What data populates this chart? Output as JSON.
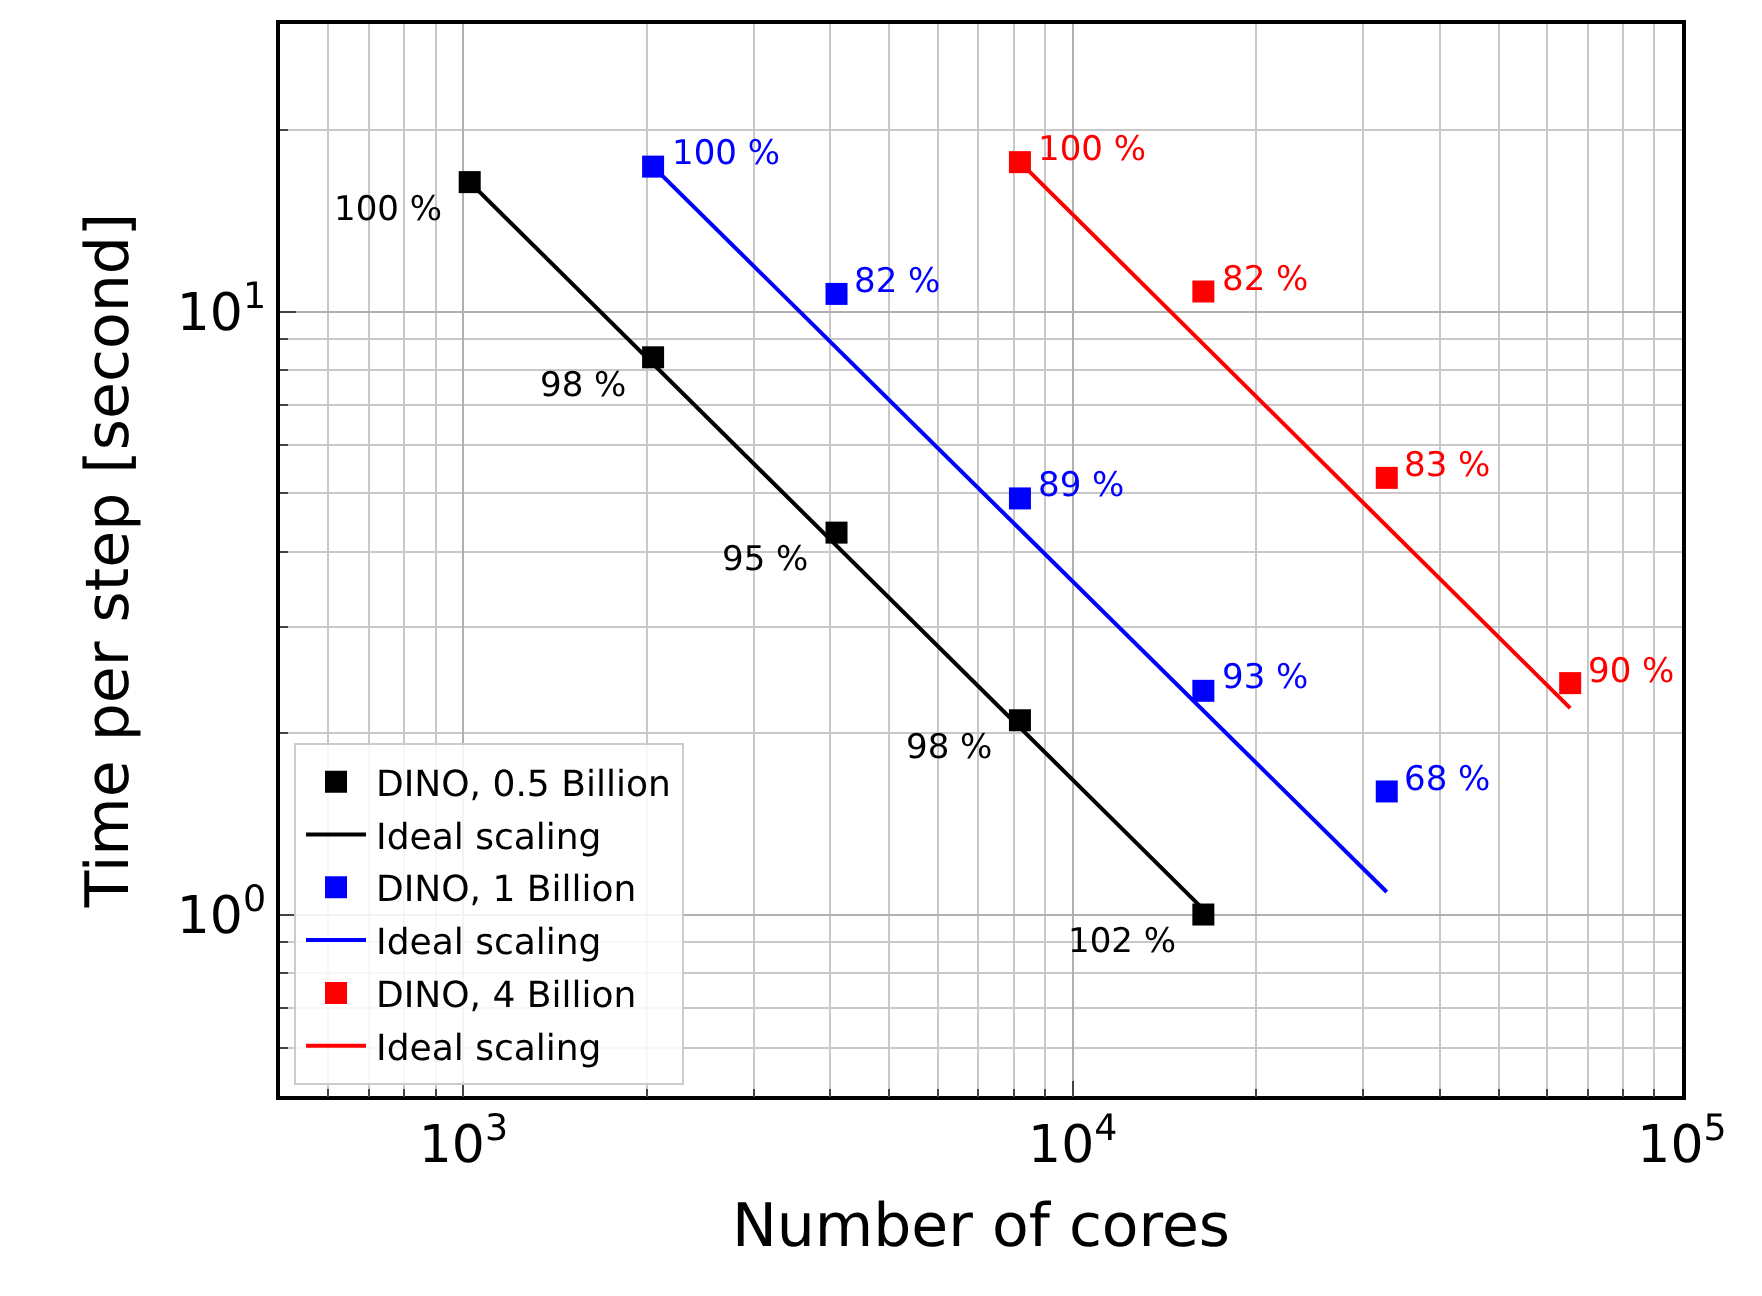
{
  "chart_data": {
    "type": "scatter",
    "xlabel": "Number of cores",
    "ylabel": "Time per step [second]",
    "log": "xy",
    "grid": true,
    "legend": "bottom left",
    "xlim": [
      500,
      100000
    ],
    "ylim": [
      0.5,
      30
    ],
    "xticks": [
      {
        "value": 1000,
        "label": "10$^{3}$"
      },
      {
        "value": 10000,
        "label": "10$^{4}$"
      },
      {
        "value": 100000,
        "label": "10$^{5}$"
      }
    ],
    "yticks": [
      {
        "value": 1,
        "label": "10$^{0}$"
      },
      {
        "value": 10,
        "label": "10$^{1}$"
      }
    ],
    "series": [
      {
        "name": "DINO, 0.5 Billion",
        "color": "#000000",
        "marker": "square",
        "x": [
          1024,
          2048,
          4096,
          8192,
          16384
        ],
        "values": [
          16.4,
          8.4,
          4.3,
          2.1,
          1.0
        ]
      },
      {
        "name": "Ideal scaling",
        "type": "line",
        "color": "#000000",
        "x": [
          1024,
          16384
        ],
        "values": [
          16.4,
          1.02
        ]
      },
      {
        "name": "DINO, 1 Billion",
        "color": "#0000ff",
        "marker": "square",
        "x": [
          2048,
          4096,
          8192,
          16384,
          32768
        ],
        "values": [
          17.4,
          10.7,
          4.9,
          2.35,
          1.6
        ]
      },
      {
        "name": "Ideal scaling",
        "type": "line",
        "color": "#0000ff",
        "x": [
          2048,
          32768
        ],
        "values": [
          17.4,
          1.09
        ]
      },
      {
        "name": "DINO, 4 Billion",
        "color": "#ff0000",
        "marker": "square",
        "x": [
          8192,
          16384,
          32768,
          65536
        ],
        "values": [
          17.7,
          10.8,
          5.3,
          2.42
        ]
      },
      {
        "name": "Ideal scaling",
        "type": "line",
        "color": "#ff0000",
        "x": [
          8192,
          65536
        ],
        "values": [
          17.7,
          2.2
        ]
      }
    ],
    "annotations": [
      {
        "text": "100 %",
        "x": 1024,
        "y": 16.4
      },
      {
        "text": "98 %",
        "x": 2048,
        "y": 8.4
      },
      {
        "text": "95 %",
        "x": 4096,
        "y": 4.3
      },
      {
        "text": "98 %",
        "x": 8192,
        "y": 2.1
      },
      {
        "text": "102 %",
        "x": 16384,
        "y": 1.0
      },
      {
        "text": "100 %",
        "x": 2048,
        "y": 17.4
      },
      {
        "text": "82 %",
        "x": 4096,
        "y": 10.7
      },
      {
        "text": "89 %",
        "x": 8192,
        "y": 4.9
      },
      {
        "text": "93 %",
        "x": 16384,
        "y": 2.35
      },
      {
        "text": "68 %",
        "x": 32768,
        "y": 1.6
      },
      {
        "text": "100 %",
        "x": 8192,
        "y": 17.7
      },
      {
        "text": "82 %",
        "x": 16384,
        "y": 10.8
      },
      {
        "text": "83 %",
        "x": 32768,
        "y": 5.3
      },
      {
        "text": "90 %",
        "x": 65536,
        "y": 2.42
      }
    ]
  }
}
